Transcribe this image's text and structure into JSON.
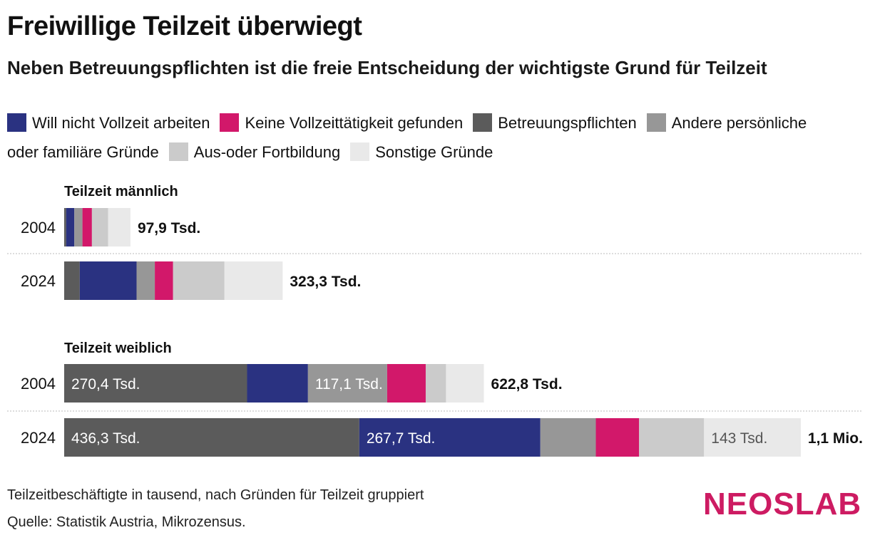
{
  "title": "Freiwillige Teilzeit überwiegt",
  "subtitle": "Neben Betreuungspflichten ist die freie Entscheidung der wichtigste Grund für Teilzeit",
  "colors": {
    "will_nicht": "#2a3281",
    "keine_vollzeit": "#d2186a",
    "betreuung": "#5b5b5b",
    "andere": "#979797",
    "ausbildung": "#cbcbcb",
    "sonstige": "#e9e9e9"
  },
  "legend": [
    {
      "key": "will_nicht",
      "label": "Will nicht Vollzeit arbeiten"
    },
    {
      "key": "keine_vollzeit",
      "label": "Keine Vollzeittätigkeit gefunden"
    },
    {
      "key": "betreuung",
      "label": "Betreuungspflichten"
    },
    {
      "key": "andere",
      "label": "Andere persönliche oder familiäre Gründe"
    },
    {
      "key": "ausbildung",
      "label": "Aus-oder Fortbildung"
    },
    {
      "key": "sonstige",
      "label": "Sonstige Gründe"
    }
  ],
  "chart_data": {
    "type": "bar",
    "orientation": "horizontal",
    "stacked": true,
    "unit": "Tsd.",
    "groups": [
      {
        "label": "Teilzeit männlich",
        "bars": [
          {
            "year": "2004",
            "total_label": "97,9 Tsd.",
            "segments": [
              {
                "key": "betreuung",
                "value": 3,
                "label": ""
              },
              {
                "key": "will_nicht",
                "value": 12,
                "label": ""
              },
              {
                "key": "andere",
                "value": 12,
                "label": ""
              },
              {
                "key": "keine_vollzeit",
                "value": 14,
                "label": ""
              },
              {
                "key": "ausbildung",
                "value": 24,
                "label": ""
              },
              {
                "key": "sonstige",
                "value": 33,
                "label": ""
              }
            ]
          },
          {
            "year": "2024",
            "total_label": "323,3 Tsd.",
            "segments": [
              {
                "key": "betreuung",
                "value": 23,
                "label": ""
              },
              {
                "key": "will_nicht",
                "value": 84,
                "label": ""
              },
              {
                "key": "andere",
                "value": 27,
                "label": ""
              },
              {
                "key": "keine_vollzeit",
                "value": 27,
                "label": ""
              },
              {
                "key": "ausbildung",
                "value": 76,
                "label": ""
              },
              {
                "key": "sonstige",
                "value": 86,
                "label": ""
              }
            ]
          }
        ]
      },
      {
        "label": "Teilzeit weiblich",
        "bars": [
          {
            "year": "2004",
            "total_label": "622,8 Tsd.",
            "segments": [
              {
                "key": "betreuung",
                "value": 270.4,
                "label": "270,4 Tsd."
              },
              {
                "key": "will_nicht",
                "value": 90,
                "label": ""
              },
              {
                "key": "andere",
                "value": 117.1,
                "label": "117,1 Tsd."
              },
              {
                "key": "keine_vollzeit",
                "value": 57,
                "label": ""
              },
              {
                "key": "ausbildung",
                "value": 30,
                "label": ""
              },
              {
                "key": "sonstige",
                "value": 56,
                "label": ""
              }
            ]
          },
          {
            "year": "2024",
            "total_label": "1,1 Mio.",
            "segments": [
              {
                "key": "betreuung",
                "value": 436.3,
                "label": "436,3 Tsd."
              },
              {
                "key": "will_nicht",
                "value": 267.7,
                "label": "267,7 Tsd."
              },
              {
                "key": "andere",
                "value": 82,
                "label": ""
              },
              {
                "key": "keine_vollzeit",
                "value": 64,
                "label": ""
              },
              {
                "key": "ausbildung",
                "value": 96,
                "label": ""
              },
              {
                "key": "sonstige",
                "value": 143,
                "label": "143 Tsd."
              }
            ]
          }
        ]
      }
    ]
  },
  "footer": {
    "note": "Teilzeitbeschäftigte in tausend, nach Gründen für Teilzeit gruppiert",
    "source": "Quelle: Statistik Austria, Mikrozensus."
  },
  "logo": {
    "part1": "NEOS",
    "part2": "LAB"
  }
}
